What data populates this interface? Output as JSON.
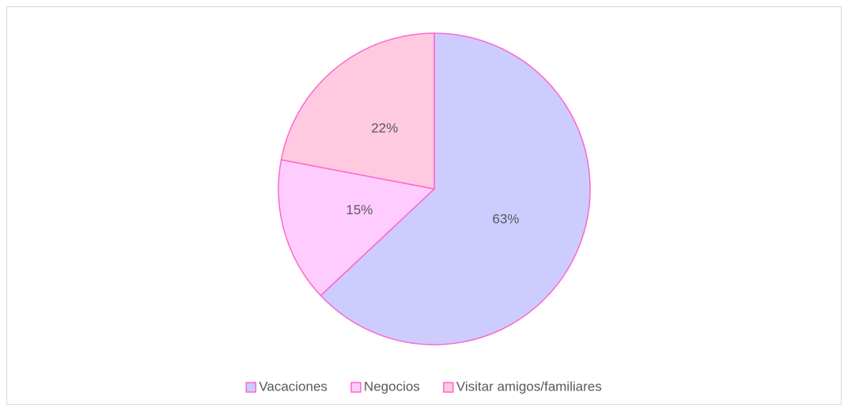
{
  "chart_data": {
    "type": "pie",
    "categories": [
      "Vacaciones",
      "Negocios",
      "Visitar amigos/familiares"
    ],
    "values": [
      63,
      15,
      22
    ],
    "value_labels": [
      "63%",
      "15%",
      "22%"
    ],
    "colors": [
      "#ccccff",
      "#ffccff",
      "#ffc9e0"
    ],
    "edge_color": "#ff66cc",
    "legend": "bottom"
  }
}
